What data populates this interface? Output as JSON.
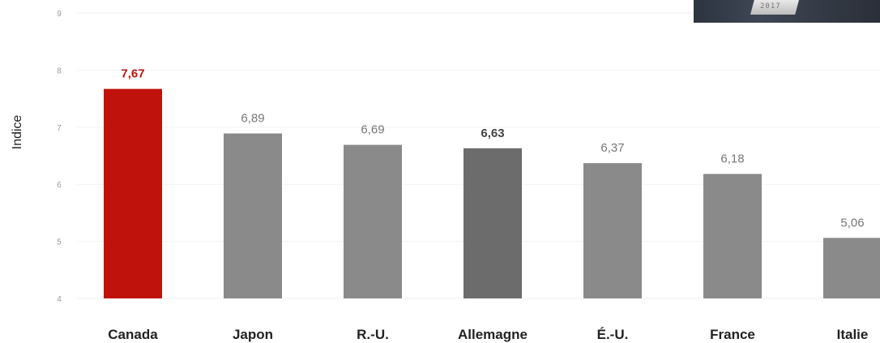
{
  "chart_data": {
    "type": "bar",
    "ylabel": "Indice",
    "ylim": [
      4,
      9
    ],
    "yticks": [
      "4",
      "5",
      "6",
      "7",
      "8",
      "9"
    ],
    "categories": [
      "Canada",
      "Japon",
      "R.-U.",
      "Allemagne",
      "É.-U.",
      "France",
      "Italie"
    ],
    "values": [
      7.67,
      6.89,
      6.69,
      6.63,
      6.37,
      6.18,
      5.06
    ],
    "value_labels": [
      "7,67",
      "6,89",
      "6,69",
      "6,63",
      "6,37",
      "6,18",
      "5,06"
    ],
    "bar_colors": [
      "#c0120c",
      "#8a8a8a",
      "#8a8a8a",
      "#6c6c6c",
      "#8a8a8a",
      "#8a8a8a",
      "#8a8a8a"
    ],
    "value_label_colors": [
      "#c0120c",
      "#777777",
      "#777777",
      "#444444",
      "#777777",
      "#777777",
      "#777777"
    ],
    "value_label_bold": [
      true,
      false,
      false,
      true,
      false,
      false,
      false
    ],
    "grid": true
  },
  "photo": {
    "year_text": "2017"
  }
}
